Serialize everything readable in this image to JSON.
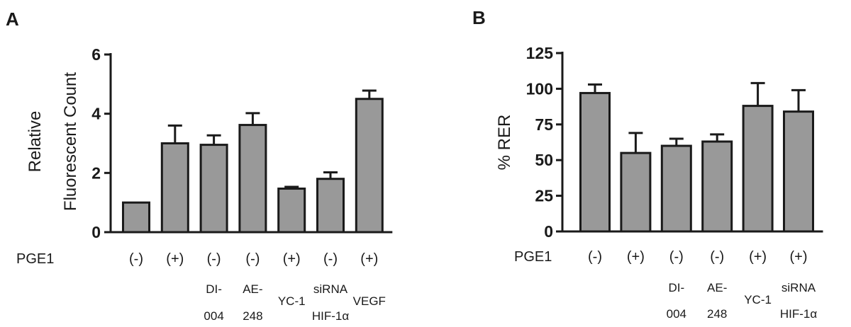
{
  "chart_data": [
    {
      "type": "bar",
      "panel_label": "A",
      "ylabel": [
        "Relative",
        "Fluorescent Count"
      ],
      "ylim": [
        0,
        6
      ],
      "yticks": [
        0,
        2,
        4,
        6
      ],
      "row_label": "PGE1",
      "pge1": [
        "(-)",
        "(+)",
        "(-)",
        "(-)",
        "(+)",
        "(-)",
        "(+)"
      ],
      "treatments": [
        [],
        [],
        [
          "DI-",
          "004"
        ],
        [
          "AE-",
          "248"
        ],
        [
          "YC-1"
        ],
        [
          "siRNA",
          "HIF-1α"
        ],
        [
          "VEGF"
        ]
      ],
      "values": [
        1.0,
        3.0,
        2.95,
        3.62,
        1.47,
        1.8,
        4.5
      ],
      "errors": [
        0.0,
        0.6,
        0.32,
        0.4,
        0.06,
        0.22,
        0.28
      ],
      "bar_color": "#999999",
      "grid": false
    },
    {
      "type": "bar",
      "panel_label": "B",
      "ylabel": [
        "% RER"
      ],
      "ylim": [
        0,
        125
      ],
      "yticks": [
        0,
        25,
        50,
        75,
        100,
        125
      ],
      "row_label": "PGE1",
      "pge1": [
        "(-)",
        "(+)",
        "(-)",
        "(-)",
        "(+)",
        "(+)"
      ],
      "treatments": [
        [],
        [],
        [
          "DI-",
          "004"
        ],
        [
          "AE-",
          "248"
        ],
        [
          "YC-1"
        ],
        [
          "siRNA",
          "HIF-1α"
        ]
      ],
      "values": [
        97,
        55,
        60,
        63,
        88,
        84
      ],
      "errors": [
        6,
        14,
        5,
        5,
        16,
        15
      ],
      "bar_color": "#999999",
      "grid": false
    }
  ]
}
